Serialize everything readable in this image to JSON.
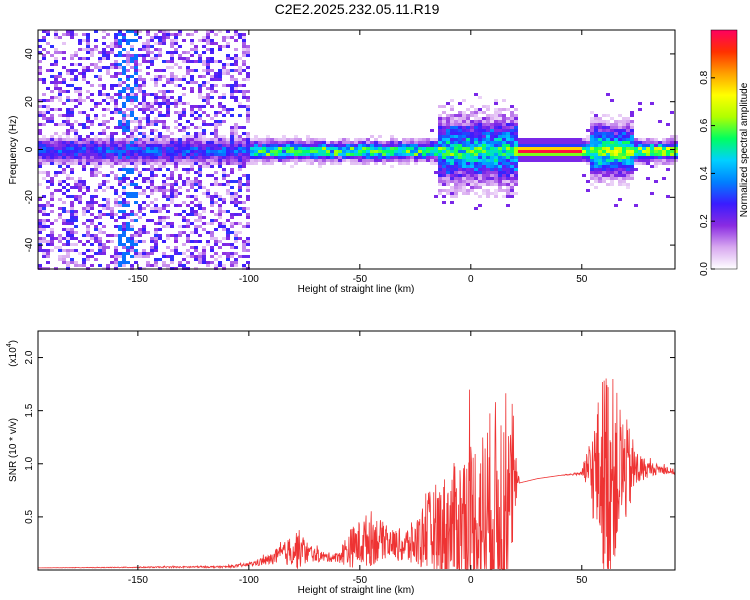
{
  "figure": {
    "title": "C2E2.2025.232.05.11.R19"
  },
  "chart_data": [
    {
      "type": "heatmap",
      "title": "C2E2.2025.232.05.11.R19",
      "xlabel": "Height of straight line (km)",
      "ylabel": "Frequency (Hz)",
      "xlim": [
        -195,
        92
      ],
      "ylim": [
        -50,
        50
      ],
      "xticks": [
        -150,
        -100,
        -50,
        0,
        50
      ],
      "yticks": [
        -40,
        -20,
        0,
        20,
        40
      ],
      "grid": false,
      "colorbar": {
        "label": "Normalized spectral amplitude",
        "range": [
          0,
          1
        ],
        "ticks": [
          0.0,
          0.2,
          0.4,
          0.6,
          0.8
        ],
        "tick_labels": [
          "0.0",
          "0.2",
          "0.4",
          "0.6",
          "0.8"
        ],
        "colormap": [
          "#ffffff",
          "#d8a8f0",
          "#8a2be2",
          "#3a1cff",
          "#0080ff",
          "#00d0ff",
          "#00ff60",
          "#b0ff00",
          "#ffff00",
          "#ffa000",
          "#ff3000",
          "#ff0060"
        ]
      },
      "features": [
        {
          "x_range": [
            -195,
            -100
          ],
          "description_level": 0.1
        },
        {
          "x_range": [
            -100,
            20
          ],
          "description_level": 0.3
        },
        {
          "x_range": [
            20,
            50
          ],
          "description_level": 0.95
        },
        {
          "x_range": [
            50,
            92
          ],
          "description_level": 0.4
        }
      ]
    },
    {
      "type": "line",
      "xlabel": "Height of straight line (km)",
      "ylabel": "SNR (10 * v/v)",
      "multiplier": "(x10",
      "multiplier_exp": "4",
      "xlim": [
        -195,
        92
      ],
      "ylim": [
        0,
        2.25
      ],
      "xticks": [
        -150,
        -100,
        -50,
        0,
        50
      ],
      "yticks": [
        0.5,
        1.0,
        1.5,
        2.0
      ],
      "ytick_labels": [
        "0.5",
        "1.0",
        "1.5",
        "2.0"
      ],
      "grid": false,
      "color": "#ee3333",
      "envelope": {
        "x": [
          -195,
          -110,
          -100,
          -90,
          -85,
          -78,
          -72,
          -65,
          -60,
          -55,
          -50,
          -45,
          -40,
          -35,
          -30,
          -25,
          -20,
          -15,
          -10,
          -5,
          0,
          5,
          10,
          15,
          20,
          22,
          30,
          40,
          50,
          55,
          60,
          62,
          65,
          70,
          75,
          80,
          85,
          92
        ],
        "base": [
          0.02,
          0.03,
          0.05,
          0.1,
          0.15,
          0.2,
          0.15,
          0.12,
          0.12,
          0.2,
          0.25,
          0.3,
          0.28,
          0.25,
          0.22,
          0.25,
          0.35,
          0.35,
          0.4,
          0.45,
          0.45,
          0.45,
          0.5,
          0.55,
          0.78,
          0.82,
          0.86,
          0.89,
          0.91,
          0.92,
          0.92,
          0.9,
          0.92,
          0.94,
          0.95,
          0.95,
          0.95,
          0.92
        ],
        "amp": [
          0.0,
          0.01,
          0.02,
          0.06,
          0.1,
          0.22,
          0.08,
          0.05,
          0.05,
          0.2,
          0.25,
          0.3,
          0.2,
          0.15,
          0.2,
          0.25,
          0.4,
          0.55,
          0.6,
          0.7,
          0.9,
          1.0,
          1.2,
          1.3,
          0.4,
          0.0,
          0.0,
          0.0,
          0.02,
          0.5,
          1.1,
          1.25,
          0.9,
          0.55,
          0.2,
          0.08,
          0.05,
          0.03
        ]
      }
    }
  ]
}
